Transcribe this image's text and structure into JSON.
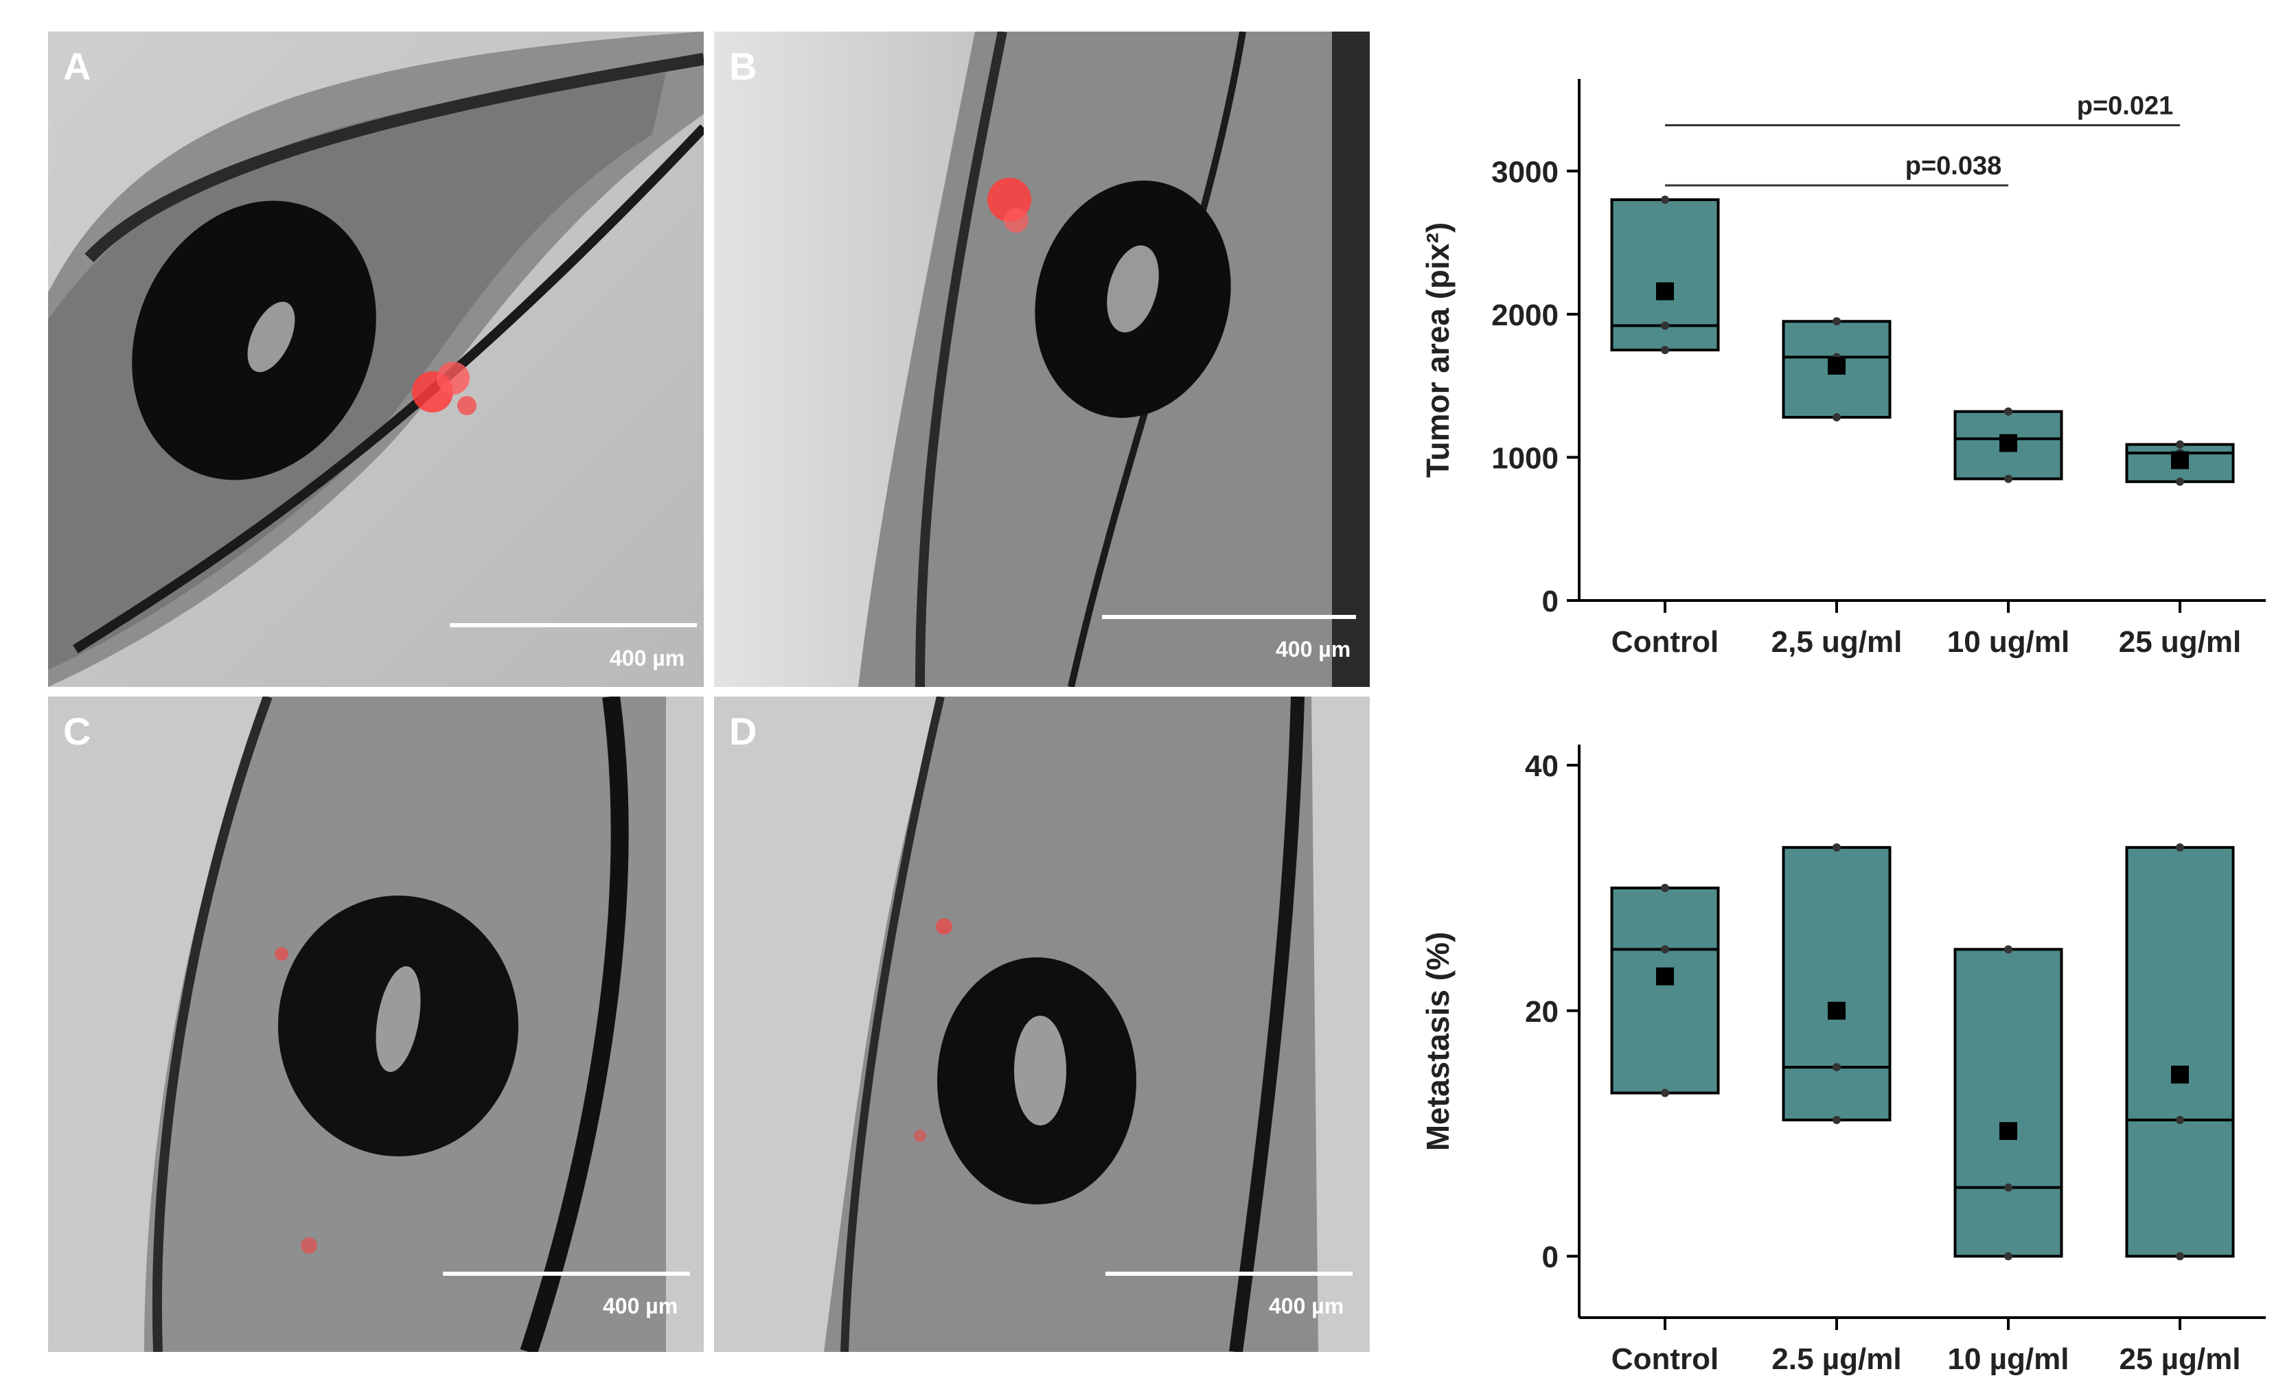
{
  "panels": [
    {
      "letter": "A",
      "scale": "400 µm"
    },
    {
      "letter": "B",
      "scale": "400 µm"
    },
    {
      "letter": "C",
      "scale": "400 µm"
    },
    {
      "letter": "D",
      "scale": "400 µm"
    }
  ],
  "colors": {
    "box_fill": "#4f8b8b",
    "box_edge": "#000000",
    "fluorescence": "#ff3c3c",
    "micrograph_bg": "#bdbdbd"
  },
  "chart_data": [
    {
      "type": "box",
      "ylabel": "Tumor area (pix²)",
      "categories": [
        "Control",
        "2,5 ug/ml",
        "10 ug/ml",
        "25 ug/ml"
      ],
      "ylim": [
        0,
        3500
      ],
      "yticks": [
        0,
        1000,
        2000,
        3000
      ],
      "boxes": [
        {
          "q1": 1750,
          "median": 1920,
          "q3": 2800,
          "mean": 2160,
          "points": [
            1750,
            1920,
            2800
          ]
        },
        {
          "q1": 1280,
          "median": 1700,
          "q3": 1950,
          "mean": 1640,
          "points": [
            1280,
            1700,
            1950
          ]
        },
        {
          "q1": 850,
          "median": 1130,
          "q3": 1320,
          "mean": 1100,
          "points": [
            850,
            1130,
            1320
          ]
        },
        {
          "q1": 830,
          "median": 1030,
          "q3": 1090,
          "mean": 980,
          "points": [
            830,
            1030,
            1090
          ]
        }
      ],
      "annotations": [
        {
          "text": "p=0.038",
          "from": "Control",
          "to": "10 ug/ml",
          "y": 2900
        },
        {
          "text": "p=0.021",
          "from": "Control",
          "to": "25 ug/ml",
          "y": 3320
        }
      ]
    },
    {
      "type": "box",
      "ylabel": "Metastasis (%)",
      "categories": [
        "Control",
        "2.5 µg/ml",
        "10 µg/ml",
        "25 µg/ml"
      ],
      "ylim": [
        -5,
        40
      ],
      "yticks": [
        0,
        20,
        40
      ],
      "boxes": [
        {
          "q1": 13.3,
          "median": 25,
          "q3": 30,
          "mean": 22.8,
          "points": [
            13.3,
            25,
            30
          ]
        },
        {
          "q1": 11.1,
          "median": 15.4,
          "q3": 33.3,
          "mean": 20,
          "points": [
            11.1,
            15.4,
            33.3
          ]
        },
        {
          "q1": 0,
          "median": 5.6,
          "q3": 25,
          "mean": 10.2,
          "points": [
            0,
            5.6,
            25
          ]
        },
        {
          "q1": 0,
          "median": 11.1,
          "q3": 33.3,
          "mean": 14.8,
          "points": [
            0,
            11.1,
            33.3
          ]
        }
      ],
      "annotations": []
    }
  ]
}
